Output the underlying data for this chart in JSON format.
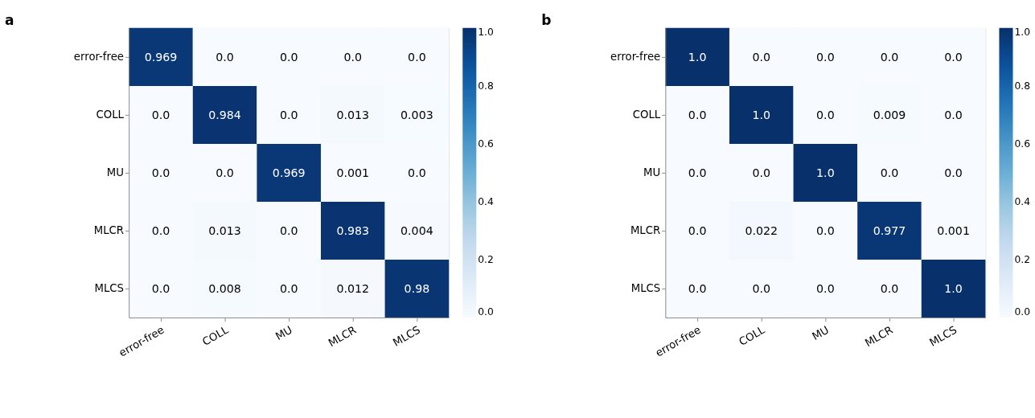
{
  "chart_data": [
    {
      "type": "heatmap",
      "title": "a",
      "categories": [
        "error-free",
        "COLL",
        "MU",
        "MLCR",
        "MLCS"
      ],
      "y_categories": [
        "error-free",
        "COLL",
        "MU",
        "MLCR",
        "MLCS"
      ],
      "cells": [
        [
          0.969,
          0,
          0,
          0,
          0
        ],
        [
          0,
          0.984,
          0,
          0.013,
          0.003
        ],
        [
          0,
          0,
          0.969,
          0.001,
          0
        ],
        [
          0,
          0.013,
          0,
          0.983,
          0.004
        ],
        [
          0,
          0.008,
          0,
          0.012,
          0.98
        ]
      ],
      "cell_labels": [
        [
          "0.969",
          "0.0",
          "0.0",
          "0.0",
          "0.0"
        ],
        [
          "0.0",
          "0.984",
          "0.0",
          "0.013",
          "0.003"
        ],
        [
          "0.0",
          "0.0",
          "0.969",
          "0.001",
          "0.0"
        ],
        [
          "0.0",
          "0.013",
          "0.0",
          "0.983",
          "0.004"
        ],
        [
          "0.0",
          "0.008",
          "0.0",
          "0.012",
          "0.98"
        ]
      ],
      "clim": [
        0,
        1
      ],
      "cticks": [
        {
          "value": 0,
          "label": "0.0"
        },
        {
          "value": 0.2,
          "label": "0.2"
        },
        {
          "value": 0.4,
          "label": "0.4"
        },
        {
          "value": 0.6,
          "label": "0.6"
        },
        {
          "value": 0.8,
          "label": "0.8"
        },
        {
          "value": 1,
          "label": "1.0"
        }
      ]
    },
    {
      "type": "heatmap",
      "title": "b",
      "categories": [
        "error-free",
        "COLL",
        "MU",
        "MLCR",
        "MLCS"
      ],
      "y_categories": [
        "error-free",
        "COLL",
        "MU",
        "MLCR",
        "MLCS"
      ],
      "cells": [
        [
          1,
          0,
          0,
          0,
          0
        ],
        [
          0,
          1,
          0,
          0.009,
          0
        ],
        [
          0,
          0,
          1,
          0,
          0
        ],
        [
          0,
          0.022,
          0,
          0.977,
          0.001
        ],
        [
          0,
          0,
          0,
          0,
          1
        ]
      ],
      "cell_labels": [
        [
          "1.0",
          "0.0",
          "0.0",
          "0.0",
          "0.0"
        ],
        [
          "0.0",
          "1.0",
          "0.0",
          "0.009",
          "0.0"
        ],
        [
          "0.0",
          "0.0",
          "1.0",
          "0.0",
          "0.0"
        ],
        [
          "0.0",
          "0.022",
          "0.0",
          "0.977",
          "0.001"
        ],
        [
          "0.0",
          "0.0",
          "0.0",
          "0.0",
          "1.0"
        ]
      ],
      "clim": [
        0,
        1
      ],
      "cticks": [
        {
          "value": 0,
          "label": "0.0"
        },
        {
          "value": 0.2,
          "label": "0.2"
        },
        {
          "value": 0.4,
          "label": "0.4"
        },
        {
          "value": 0.6,
          "label": "0.6"
        },
        {
          "value": 0.8,
          "label": "0.8"
        },
        {
          "value": 1,
          "label": "1.0"
        }
      ]
    }
  ]
}
